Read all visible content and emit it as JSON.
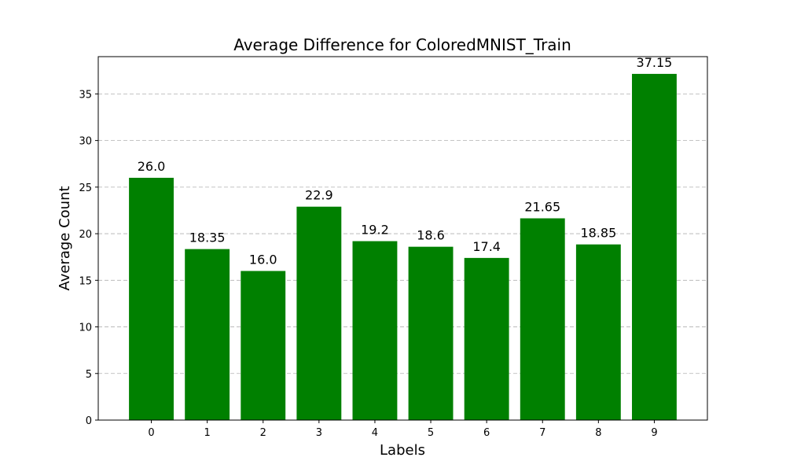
{
  "chart_data": {
    "type": "bar",
    "title": "Average Difference for ColoredMNIST_Train",
    "xlabel": "Labels",
    "ylabel": "Average Count",
    "categories": [
      "0",
      "1",
      "2",
      "3",
      "4",
      "5",
      "6",
      "7",
      "8",
      "9"
    ],
    "values": [
      26.0,
      18.35,
      16.0,
      22.9,
      19.2,
      18.6,
      17.4,
      21.65,
      18.85,
      37.15
    ],
    "data_labels": [
      "26.0",
      "18.35",
      "16.0",
      "22.9",
      "19.2",
      "18.6",
      "17.4",
      "21.65",
      "18.85",
      "37.15"
    ],
    "yticks": [
      0,
      5,
      10,
      15,
      20,
      25,
      30,
      35
    ],
    "ylim": [
      0,
      39
    ],
    "grid": "horizontal dashed",
    "bar_color": "#008000"
  }
}
